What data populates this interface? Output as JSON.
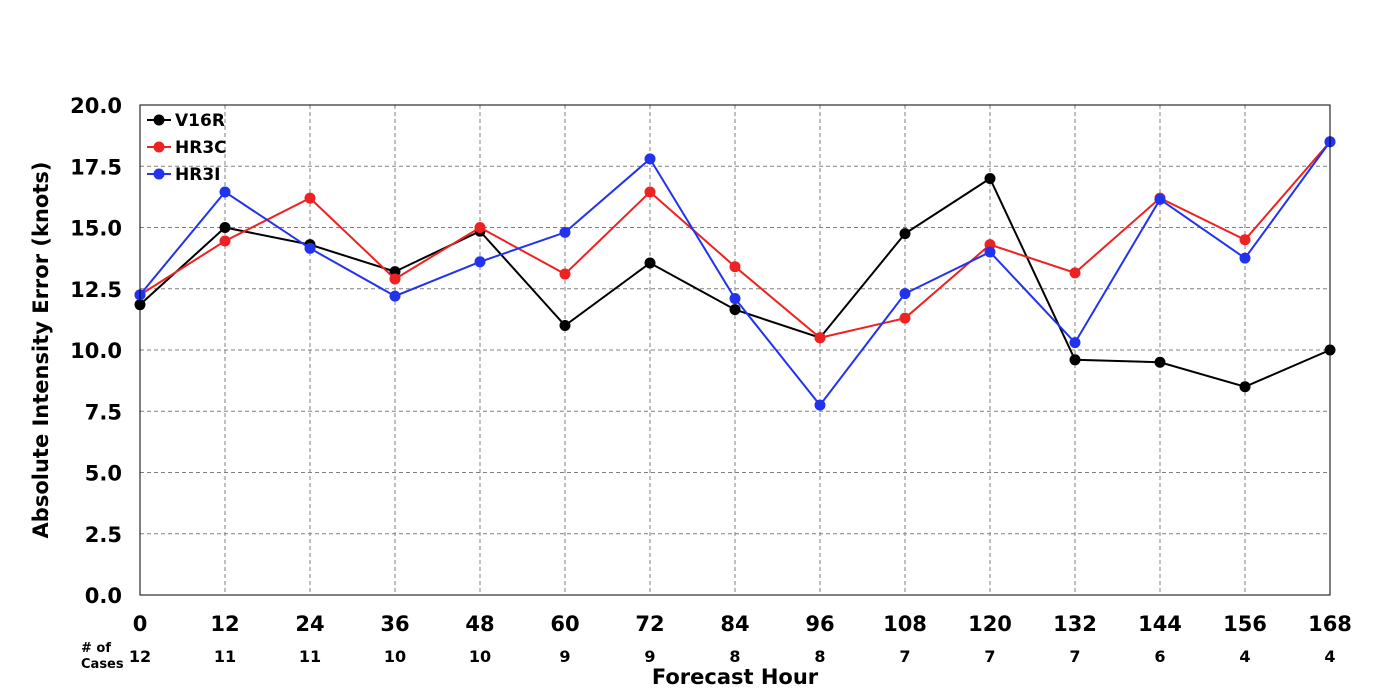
{
  "chart_data": {
    "type": "line",
    "xlabel": "Forecast Hour",
    "ylabel": "Absolute Intensity Error (knots)",
    "x": [
      0,
      12,
      24,
      36,
      48,
      60,
      72,
      84,
      96,
      108,
      120,
      132,
      144,
      156,
      168
    ],
    "x_tick_labels": [
      "0",
      "12",
      "24",
      "36",
      "48",
      "60",
      "72",
      "84",
      "96",
      "108",
      "120",
      "132",
      "144",
      "156",
      "168"
    ],
    "xlim": [
      0,
      168
    ],
    "ylim": [
      0,
      20
    ],
    "y_ticks": [
      "0.0",
      "2.5",
      "5.0",
      "7.5",
      "10.0",
      "12.5",
      "15.0",
      "17.5",
      "20.0"
    ],
    "grid": true,
    "legend_position": "top-left",
    "cases_title_line1": "# of",
    "cases_title_line2": "Cases",
    "cases": [
      "12",
      "11",
      "11",
      "10",
      "10",
      "9",
      "9",
      "8",
      "8",
      "7",
      "7",
      "7",
      "6",
      "4",
      "4"
    ],
    "series": [
      {
        "name": "V16R",
        "color": "#000000",
        "values": [
          11.85,
          15.0,
          14.3,
          13.2,
          14.85,
          11.0,
          13.55,
          11.65,
          10.5,
          14.75,
          17.0,
          9.6,
          9.5,
          8.5,
          10.0
        ]
      },
      {
        "name": "HR3C",
        "color": "#ee2222",
        "values": [
          12.25,
          14.45,
          16.2,
          12.9,
          15.0,
          13.1,
          16.45,
          13.4,
          10.5,
          11.3,
          14.3,
          13.15,
          16.2,
          14.5,
          18.5
        ]
      },
      {
        "name": "HR3I",
        "color": "#2233ee",
        "values": [
          12.25,
          16.45,
          14.15,
          12.2,
          13.6,
          14.8,
          17.8,
          12.1,
          7.75,
          12.3,
          14.0,
          10.3,
          16.15,
          13.75,
          18.5
        ]
      }
    ]
  }
}
